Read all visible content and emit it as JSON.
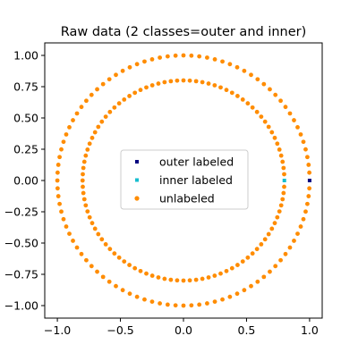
{
  "chart_data": {
    "type": "scatter",
    "title": "Raw data (2 classes=outer and inner)",
    "xlabel": "",
    "ylabel": "",
    "xlim": [
      -1.1,
      1.1
    ],
    "ylim": [
      -1.1,
      1.1
    ],
    "x_ticks": [
      -1.0,
      -0.5,
      0.0,
      0.5,
      1.0
    ],
    "x_tick_labels": [
      "−1.0",
      "−0.5",
      "0.0",
      "0.5",
      "1.0"
    ],
    "y_ticks": [
      1.0,
      0.75,
      0.5,
      0.25,
      0.0,
      -0.25,
      -0.5,
      -0.75,
      -1.0
    ],
    "y_tick_labels": [
      "1.00",
      "0.75",
      "0.50",
      "0.25",
      "0.00",
      "−0.25",
      "−0.50",
      "−0.75",
      "−1.00"
    ],
    "grid": false,
    "legend_position": "center",
    "series": [
      {
        "name": "outer labeled",
        "color": "#000080",
        "marker": "square",
        "points": [
          [
            1.0,
            0.0
          ]
        ]
      },
      {
        "name": "inner labeled",
        "color": "#17becf",
        "marker": "square",
        "points": [
          [
            0.8,
            0.0
          ]
        ]
      },
      {
        "name": "unlabeled",
        "color": "#ff8c00",
        "marker": "circle",
        "rings": [
          {
            "radius": 1.0,
            "count": 100,
            "skip_first": true
          },
          {
            "radius": 0.8,
            "count": 100,
            "skip_first": true
          }
        ]
      }
    ]
  }
}
